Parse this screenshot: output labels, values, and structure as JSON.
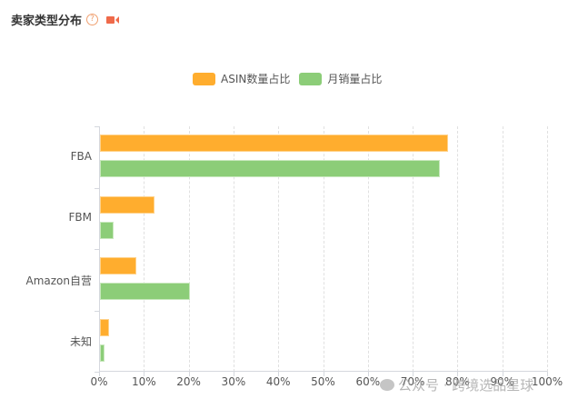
{
  "header": {
    "title": "卖家类型分布",
    "help_icon": "question-circle-icon",
    "video_icon": "video-camera-icon"
  },
  "colors": {
    "asin": "#ffad2e",
    "sales": "#8ccd78",
    "title_icon": "#ef6a4a"
  },
  "legend": [
    {
      "label": "ASIN数量占比",
      "color": "#ffad2e"
    },
    {
      "label": "月销量占比",
      "color": "#8ccd78"
    }
  ],
  "watermark": "公众号 · 跨境选品星球",
  "chart_data": {
    "type": "bar",
    "orientation": "horizontal",
    "title": "卖家类型分布",
    "categories": [
      "FBA",
      "FBM",
      "Amazon自营",
      "未知"
    ],
    "series": [
      {
        "name": "ASIN数量占比",
        "values": [
          77.7,
          12.2,
          8.2,
          2.1
        ]
      },
      {
        "name": "月销量占比",
        "values": [
          75.9,
          3.1,
          20.0,
          1.0
        ]
      }
    ],
    "xlabel": "",
    "ylabel": "",
    "xlim": [
      0,
      100
    ],
    "x_ticks": [
      "0%",
      "10%",
      "20%",
      "30%",
      "40%",
      "50%",
      "60%",
      "70%",
      "80%",
      "90%",
      "100%"
    ],
    "grid": "vertical dashed",
    "legend_position": "top"
  }
}
